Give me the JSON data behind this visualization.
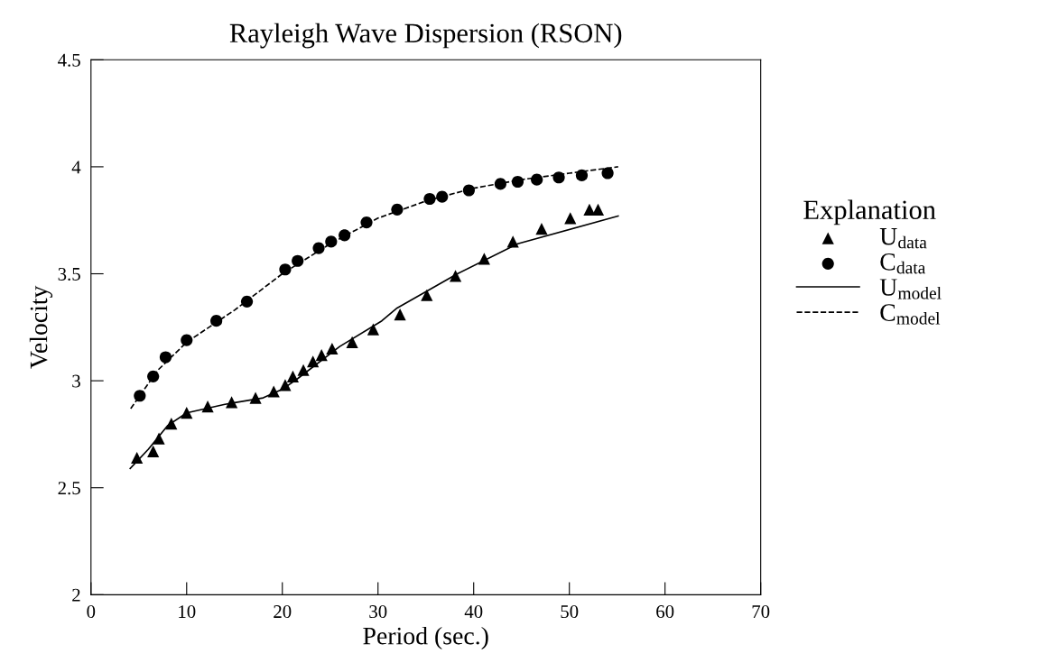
{
  "chart_data": {
    "type": "scatter",
    "title": "Rayleigh Wave Dispersion (RSON)",
    "xlabel": "Period (sec.)",
    "ylabel": "Velocity",
    "legend_title": "Explanation",
    "legend": "right",
    "grid": false,
    "xlim": [
      0,
      70
    ],
    "xticks": [
      0,
      10,
      20,
      30,
      40,
      50,
      60,
      70
    ],
    "ylim": [
      2,
      4.5
    ],
    "yticks": [
      2,
      2.5,
      3,
      3.5,
      4,
      4.5
    ],
    "series": [
      {
        "name": "U$_{data}$",
        "marker": "triangle",
        "color": "#000000",
        "x": [
          4.8,
          6.5,
          7.1,
          8.4,
          10,
          12.2,
          14.7,
          17.2,
          19.1,
          20.3,
          21.1,
          22.2,
          23.2,
          24.1,
          25.2,
          27.3,
          29.5,
          32.3,
          35.1,
          38.1,
          41.1,
          44.1,
          47.1,
          50.1,
          52.1,
          53.0
        ],
        "values": [
          2.64,
          2.67,
          2.73,
          2.8,
          2.85,
          2.88,
          2.9,
          2.92,
          2.95,
          2.98,
          3.02,
          3.05,
          3.09,
          3.12,
          3.15,
          3.18,
          3.24,
          3.31,
          3.4,
          3.49,
          3.57,
          3.65,
          3.71,
          3.76,
          3.8,
          3.8
        ]
      },
      {
        "name": "C$_{data}$",
        "marker": "circle",
        "color": "#000000",
        "x": [
          5.1,
          6.5,
          7.8,
          10,
          13.1,
          16.3,
          20.3,
          21.6,
          23.8,
          25.1,
          26.5,
          28.8,
          32,
          35.4,
          36.7,
          39.5,
          42.8,
          44.6,
          46.6,
          48.9,
          51.3,
          54
        ],
        "values": [
          2.93,
          3.02,
          3.11,
          3.19,
          3.28,
          3.37,
          3.52,
          3.56,
          3.62,
          3.65,
          3.68,
          3.74,
          3.8,
          3.85,
          3.86,
          3.89,
          3.92,
          3.93,
          3.94,
          3.95,
          3.96,
          3.97
        ]
      },
      {
        "name": "U$_{model}$",
        "type": "line",
        "line_style": "solid",
        "color": "#000000",
        "x": [
          4.1,
          6,
          8,
          10,
          14,
          18,
          20,
          21.6,
          26,
          30.4,
          32,
          38.3,
          44.6,
          55.1
        ],
        "values": [
          2.59,
          2.68,
          2.79,
          2.85,
          2.89,
          2.92,
          2.96,
          3.01,
          3.16,
          3.28,
          3.34,
          3.5,
          3.64,
          3.77
        ]
      },
      {
        "name": "C$_{model}$",
        "type": "line",
        "line_style": "dashed",
        "color": "#000000",
        "x": [
          4.15,
          5.1,
          7,
          10,
          15,
          20,
          25,
          30,
          35,
          40,
          45,
          50,
          55.1
        ],
        "values": [
          2.87,
          2.93,
          3.05,
          3.18,
          3.33,
          3.5,
          3.64,
          3.76,
          3.84,
          3.9,
          3.94,
          3.97,
          4.0
        ]
      }
    ]
  }
}
